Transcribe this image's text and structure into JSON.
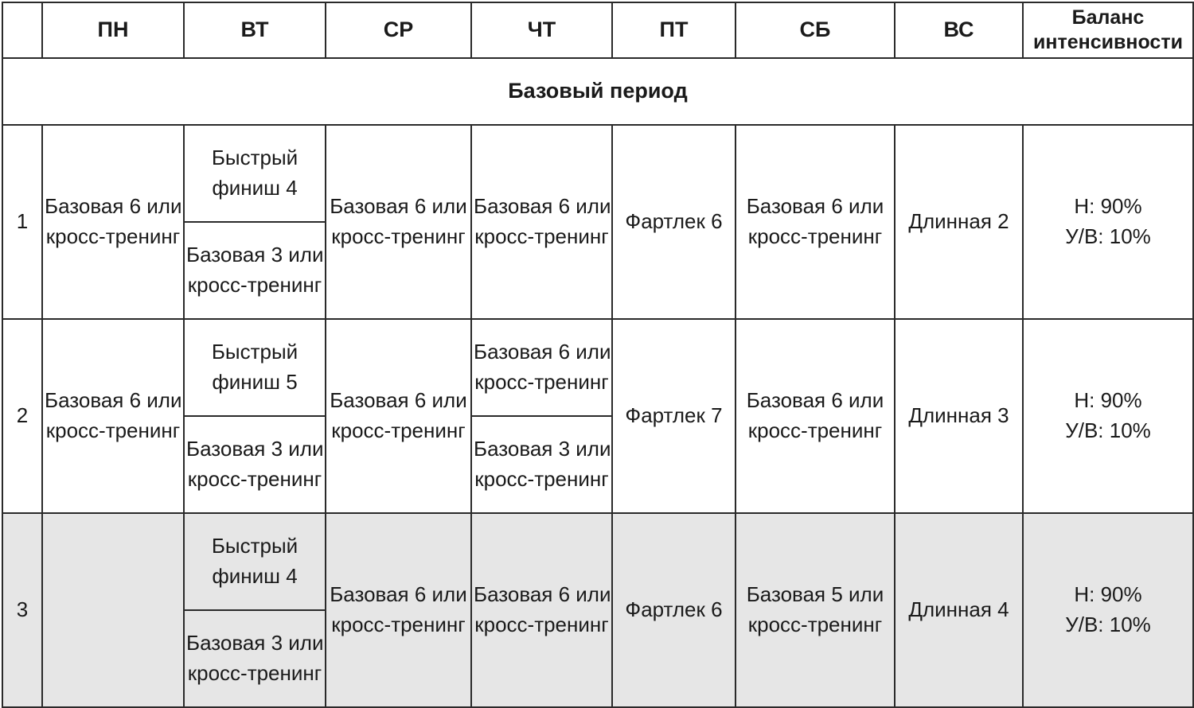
{
  "columns": {
    "week": "",
    "mon": "ПН",
    "tue": "ВТ",
    "wed": "СР",
    "thu": "ЧТ",
    "fri": "ПТ",
    "sat": "СБ",
    "sun": "ВС",
    "balance_line1": "Баланс",
    "balance_line2": "интенсивности"
  },
  "period_title": "Базовый период",
  "weeks": [
    {
      "number": "1",
      "mon": [
        "Базовая 6 или",
        "кросс-тренинг"
      ],
      "tue_top": [
        "Быстрый",
        "финиш 4"
      ],
      "tue_bottom": [
        "Базовая 3 или",
        "кросс-тренинг"
      ],
      "wed": [
        "Базовая 6 или",
        "кросс-тренинг"
      ],
      "thu": [
        "Базовая 6 или",
        "кросс-тренинг"
      ],
      "fri": "Фартлек 6",
      "sat": [
        "Базовая 6 или",
        "кросс-тренинг"
      ],
      "sun": "Длинная 2",
      "balance": [
        "Н: 90%",
        "У/В: 10%"
      ]
    },
    {
      "number": "2",
      "mon": [
        "Базовая 6 или",
        "кросс-тренинг"
      ],
      "tue_top": [
        "Быстрый",
        "финиш 5"
      ],
      "tue_bottom": [
        "Базовая 3 или",
        "кросс-тренинг"
      ],
      "wed": [
        "Базовая 6 или",
        "кросс-тренинг"
      ],
      "thu_top": [
        "Базовая 6 или",
        "кросс-тренинг"
      ],
      "thu_bottom": [
        "Базовая 3 или",
        "кросс-тренинг"
      ],
      "fri": "Фартлек 7",
      "sat": [
        "Базовая 6 или",
        "кросс-тренинг"
      ],
      "sun": "Длинная 3",
      "balance": [
        "Н: 90%",
        "У/В: 10%"
      ]
    },
    {
      "number": "3",
      "mon": "",
      "tue_top": [
        "Быстрый",
        "финиш 4"
      ],
      "tue_bottom": [
        "Базовая 3 или",
        "кросс-тренинг"
      ],
      "wed": [
        "Базовая 6 или",
        "кросс-тренинг"
      ],
      "thu": [
        "Базовая 6 или",
        "кросс-тренинг"
      ],
      "fri": "Фартлек 6",
      "sat": [
        "Базовая 5 или",
        "кросс-тренинг"
      ],
      "sun": "Длинная 4",
      "balance": [
        "Н: 90%",
        "У/В: 10%"
      ]
    }
  ],
  "colors": {
    "border": "#2a2a2a",
    "shaded_row": "#e6e6e6",
    "text": "#1a1a1a"
  }
}
